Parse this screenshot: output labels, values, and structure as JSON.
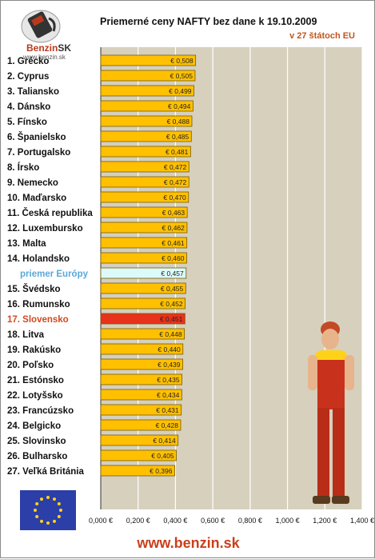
{
  "logo": {
    "brand": "Benzin",
    "brand_suffix": "SK",
    "url": "www.benzin.sk"
  },
  "chart_data": {
    "type": "bar",
    "orientation": "horizontal",
    "title": "Priemerné ceny NAFTY bez dane k 19.10.2009",
    "subtitle": "v 27 štátoch EU",
    "categories": [
      "1. Grécko",
      "2. Cyprus",
      "3. Taliansko",
      "4. Dánsko",
      "5. Fínsko",
      "6. Španielsko",
      "7. Portugalsko",
      "8. Írsko",
      "9. Nemecko",
      "10. Maďarsko",
      "11. Česká republika",
      "12. Luxembursko",
      "13. Malta",
      "14. Holandsko",
      "priemer Európy",
      "15. Švédsko",
      "16. Rumunsko",
      "17. Slovensko",
      "18. Litva",
      "19. Rakúsko",
      "20. Poľsko",
      "21. Estónsko",
      "22. Lotyšsko",
      "23. Francúzsko",
      "24. Belgicko",
      "25. Slovinsko",
      "26. Bulharsko",
      "27. Veľká Británia"
    ],
    "values": [
      0.508,
      0.505,
      0.499,
      0.494,
      0.488,
      0.485,
      0.481,
      0.472,
      0.472,
      0.47,
      0.463,
      0.462,
      0.461,
      0.46,
      0.457,
      0.455,
      0.452,
      0.451,
      0.448,
      0.44,
      0.439,
      0.435,
      0.434,
      0.431,
      0.428,
      0.414,
      0.405,
      0.396
    ],
    "value_labels": [
      "€ 0,508",
      "€ 0,505",
      "€ 0,499",
      "€ 0,494",
      "€ 0,488",
      "€ 0,485",
      "€ 0,481",
      "€ 0,472",
      "€ 0,472",
      "€ 0,470",
      "€ 0,463",
      "€ 0,462",
      "€ 0,461",
      "€ 0,460",
      "€ 0,457",
      "€ 0,455",
      "€ 0,452",
      "€ 0,451",
      "€ 0,448",
      "€ 0,440",
      "€ 0,439",
      "€ 0,435",
      "€ 0,434",
      "€ 0,431",
      "€ 0,428",
      "€ 0,414",
      "€ 0,405",
      "€ 0,396"
    ],
    "highlight": {
      "priemer Európy": "average",
      "17. Slovensko": "slovakia"
    },
    "xlim": [
      0,
      1.4
    ],
    "x_ticks": [
      "0,000 €",
      "0,200 €",
      "0,400 €",
      "0,600 €",
      "0,800 €",
      "1,000 €",
      "1,200 €",
      "1,400 €"
    ],
    "grid": true,
    "colors": {
      "bar": "#ffc000",
      "bar_border": "#7a5a00",
      "average_bar": "#dcfafa",
      "slovakia_bar": "#e8321c",
      "average_label": "#5aa8d8",
      "slovakia_label": "#d04a20",
      "plot_bg": "#d6d0bd",
      "grid": "#ffffff"
    }
  },
  "footer": {
    "url": "www.benzin.sk"
  }
}
